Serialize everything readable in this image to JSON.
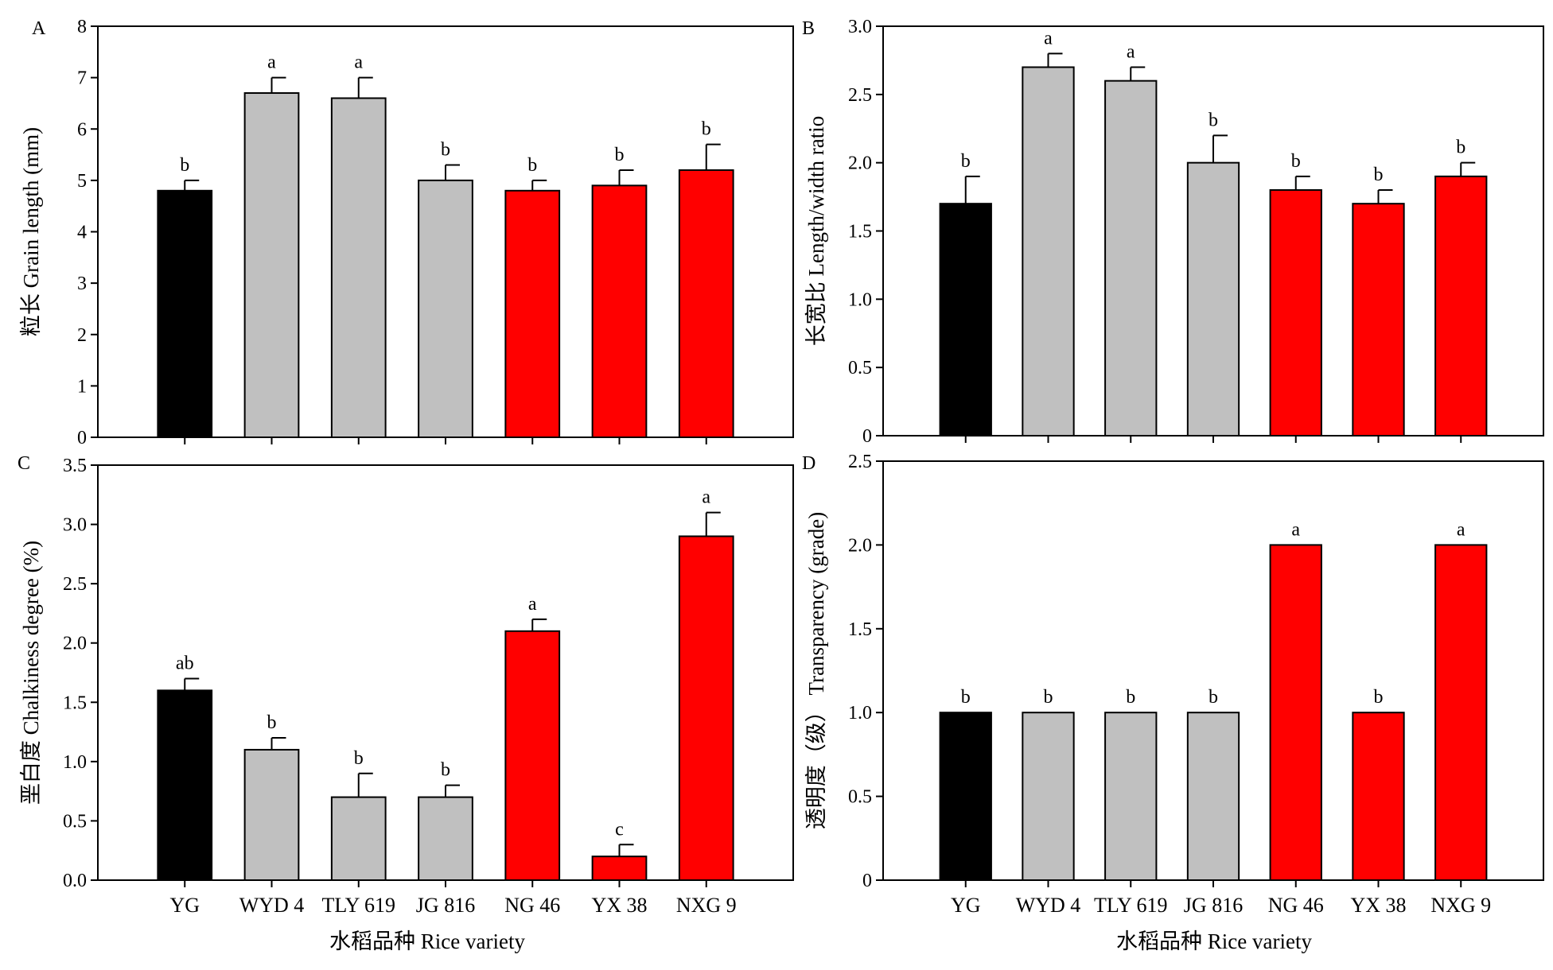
{
  "colors": {
    "black_bar": "#000000",
    "gray_bar": "#c0c0c0",
    "red_bar": "#ff0000",
    "outline": "#000000"
  },
  "x_axis_title": "水稻品种 Rice variety",
  "chart_data": [
    {
      "panel": "A",
      "type": "bar",
      "ylabel": "粒长 Grain length (mm)",
      "categories": [
        "YG",
        "WYD 4",
        "TLY 619",
        "JG 816",
        "NG 46",
        "YX 38",
        "NXG 9"
      ],
      "show_category_labels": false,
      "ylim": [
        0,
        8
      ],
      "yticks": [
        "0",
        "1",
        "2",
        "3",
        "4",
        "5",
        "6",
        "7",
        "8"
      ],
      "values": [
        4.8,
        6.7,
        6.6,
        5.0,
        4.8,
        4.9,
        5.2
      ],
      "errors": [
        0.2,
        0.3,
        0.4,
        0.3,
        0.2,
        0.3,
        0.5
      ],
      "letters": [
        "b",
        "a",
        "a",
        "b",
        "b",
        "b",
        "b"
      ],
      "bar_colors": [
        "black",
        "gray",
        "gray",
        "gray",
        "red",
        "red",
        "red"
      ],
      "grid": false
    },
    {
      "panel": "B",
      "type": "bar",
      "ylabel": "长宽比 Length/width ratio",
      "categories": [
        "YG",
        "WYD 4",
        "TLY 619",
        "JG 816",
        "NG 46",
        "YX 38",
        "NXG 9"
      ],
      "show_category_labels": false,
      "ylim": [
        0,
        3.0
      ],
      "yticks": [
        "0",
        "0.5",
        "1.0",
        "1.5",
        "2.0",
        "2.5",
        "3.0"
      ],
      "values": [
        1.7,
        2.7,
        2.6,
        2.0,
        1.8,
        1.7,
        1.9
      ],
      "errors": [
        0.2,
        0.1,
        0.1,
        0.2,
        0.1,
        0.1,
        0.1
      ],
      "letters": [
        "b",
        "a",
        "a",
        "b",
        "b",
        "b",
        "b"
      ],
      "bar_colors": [
        "black",
        "gray",
        "gray",
        "gray",
        "red",
        "red",
        "red"
      ],
      "grid": false
    },
    {
      "panel": "C",
      "type": "bar",
      "ylabel": "垩白度 Chalkiness degree (%)",
      "categories": [
        "YG",
        "WYD 4",
        "TLY 619",
        "JG 816",
        "NG 46",
        "YX 38",
        "NXG 9"
      ],
      "show_category_labels": true,
      "ylim": [
        0,
        3.5
      ],
      "yticks": [
        "0.0",
        "0.5",
        "1.0",
        "1.5",
        "2.0",
        "2.5",
        "3.0",
        "3.5"
      ],
      "values": [
        1.6,
        1.1,
        0.7,
        0.7,
        2.1,
        0.2,
        2.9
      ],
      "errors": [
        0.1,
        0.1,
        0.2,
        0.1,
        0.1,
        0.1,
        0.2
      ],
      "letters": [
        "ab",
        "b",
        "b",
        "b",
        "a",
        "c",
        "a"
      ],
      "bar_colors": [
        "black",
        "gray",
        "gray",
        "gray",
        "red",
        "red",
        "red"
      ],
      "grid": false
    },
    {
      "panel": "D",
      "type": "bar",
      "ylabel": "透明度（级） Transparency (grade)",
      "categories": [
        "YG",
        "WYD 4",
        "TLY 619",
        "JG 816",
        "NG 46",
        "YX 38",
        "NXG 9"
      ],
      "show_category_labels": true,
      "ylim": [
        0,
        2.5
      ],
      "yticks": [
        "0",
        "0.5",
        "1.0",
        "1.5",
        "2.0",
        "2.5"
      ],
      "values": [
        1.0,
        1.0,
        1.0,
        1.0,
        2.0,
        1.0,
        2.0
      ],
      "errors": [
        0,
        0,
        0,
        0,
        0,
        0,
        0
      ],
      "letters": [
        "b",
        "b",
        "b",
        "b",
        "a",
        "b",
        "a"
      ],
      "bar_colors": [
        "black",
        "gray",
        "gray",
        "gray",
        "red",
        "red",
        "red"
      ],
      "grid": false
    }
  ]
}
